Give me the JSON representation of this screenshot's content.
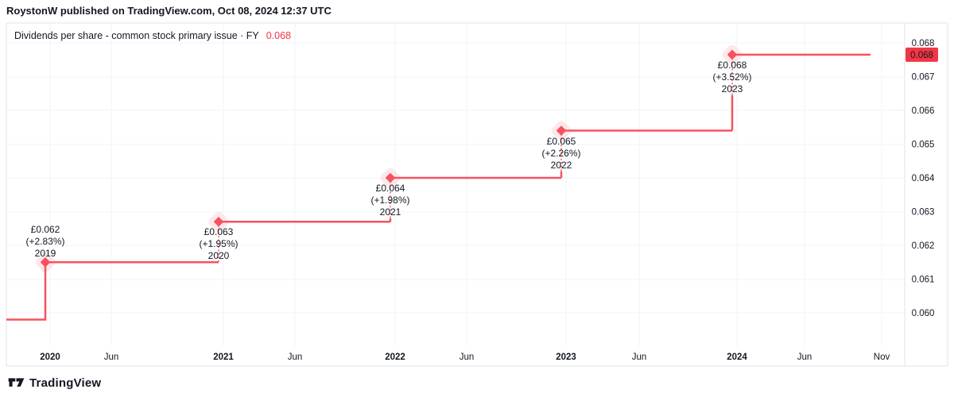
{
  "header": {
    "text": "RoystonW published on TradingView.com, Oct 08, 2024 12:37 UTC"
  },
  "legend": {
    "label": "Dividends per share - common stock primary issue · FY",
    "value": "0.068"
  },
  "footer": {
    "brand": "TradingView"
  },
  "colors": {
    "line": "#f7525f",
    "marker_halo": "rgba(247,82,95,0.13)",
    "badge_bg": "#f23645",
    "badge_text": "#ffffff",
    "value_red": "#f23645",
    "ink": "#131722",
    "grid": "#f0f3fa",
    "border": "#e0e3eb"
  },
  "chart_data": {
    "type": "line",
    "subtype": "step",
    "title": "Dividends per share - common stock primary issue · FY",
    "unit": "GBP",
    "legend_position": "top-left",
    "grid": true,
    "current_price_label": "0.068",
    "prior_value": 0.0598,
    "points": [
      {
        "year": "2019",
        "amount_label": "£0.062",
        "change_label": "(+2.83%)",
        "value": 0.0615,
        "label_side": "above"
      },
      {
        "year": "2020",
        "amount_label": "£0.063",
        "change_label": "(+1.95%)",
        "value": 0.0627,
        "label_side": "below"
      },
      {
        "year": "2021",
        "amount_label": "£0.064",
        "change_label": "(+1.98%)",
        "value": 0.064,
        "label_side": "below"
      },
      {
        "year": "2022",
        "amount_label": "£0.065",
        "change_label": "(+2.26%)",
        "value": 0.0654,
        "label_side": "below"
      },
      {
        "year": "2023",
        "amount_label": "£0.068",
        "change_label": "(+3.52%)",
        "value": 0.06765,
        "label_side": "below"
      }
    ],
    "y_axis": {
      "ticks": [
        "0.068",
        "0.067",
        "0.066",
        "0.065",
        "0.064",
        "0.063",
        "0.062",
        "0.061",
        "0.060"
      ],
      "min": 0.0595,
      "max": 0.0685
    },
    "x_axis": {
      "ticks": [
        "2020",
        "Jun",
        "2021",
        "Jun",
        "2022",
        "Jun",
        "2023",
        "Jun",
        "2024",
        "Jun",
        "Nov"
      ]
    }
  }
}
